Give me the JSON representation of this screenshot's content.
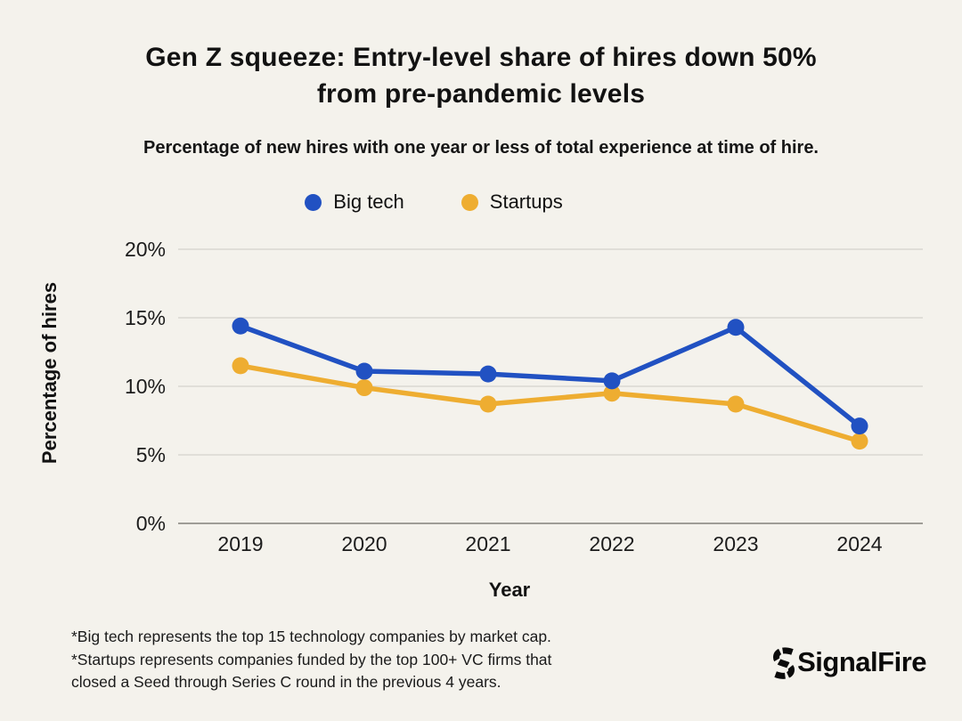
{
  "title": "Gen Z squeeze: Entry-level share of hires down 50%\nfrom pre-pandemic levels",
  "subtitle": "Percentage of new hires with one year or less of total experience at time of hire.",
  "chart_data": {
    "type": "line",
    "x": [
      "2019",
      "2020",
      "2021",
      "2022",
      "2023",
      "2024"
    ],
    "series": [
      {
        "name": "Startups",
        "color": "#eead31",
        "values": [
          11.5,
          9.9,
          8.7,
          9.5,
          8.7,
          6.0
        ]
      },
      {
        "name": "Big tech",
        "color": "#2151c2",
        "values": [
          14.4,
          11.1,
          10.9,
          10.4,
          14.3,
          7.1
        ]
      }
    ],
    "legend_order": [
      "Big tech",
      "Startups"
    ],
    "xlabel": "Year",
    "ylabel": "Percentage of hires",
    "ylim": [
      0,
      20
    ],
    "y_ticks": [
      0,
      5,
      10,
      15,
      20
    ],
    "y_tick_suffix": "%",
    "grid": "horizontal",
    "legend_position": "top"
  },
  "footnote": "*Big tech represents the top 15 technology companies by market cap.\n*Startups represents companies funded by the top 100+ VC firms that\nclosed a Seed through Series C round in the previous 4 years.",
  "brand": {
    "name": "SignalFire"
  },
  "colors": {
    "background": "#f4f2ec",
    "text": "#121212",
    "grid": "#d9d7d1",
    "axis_line": "#9f9d97",
    "tick_text": "#1c1c1c"
  }
}
